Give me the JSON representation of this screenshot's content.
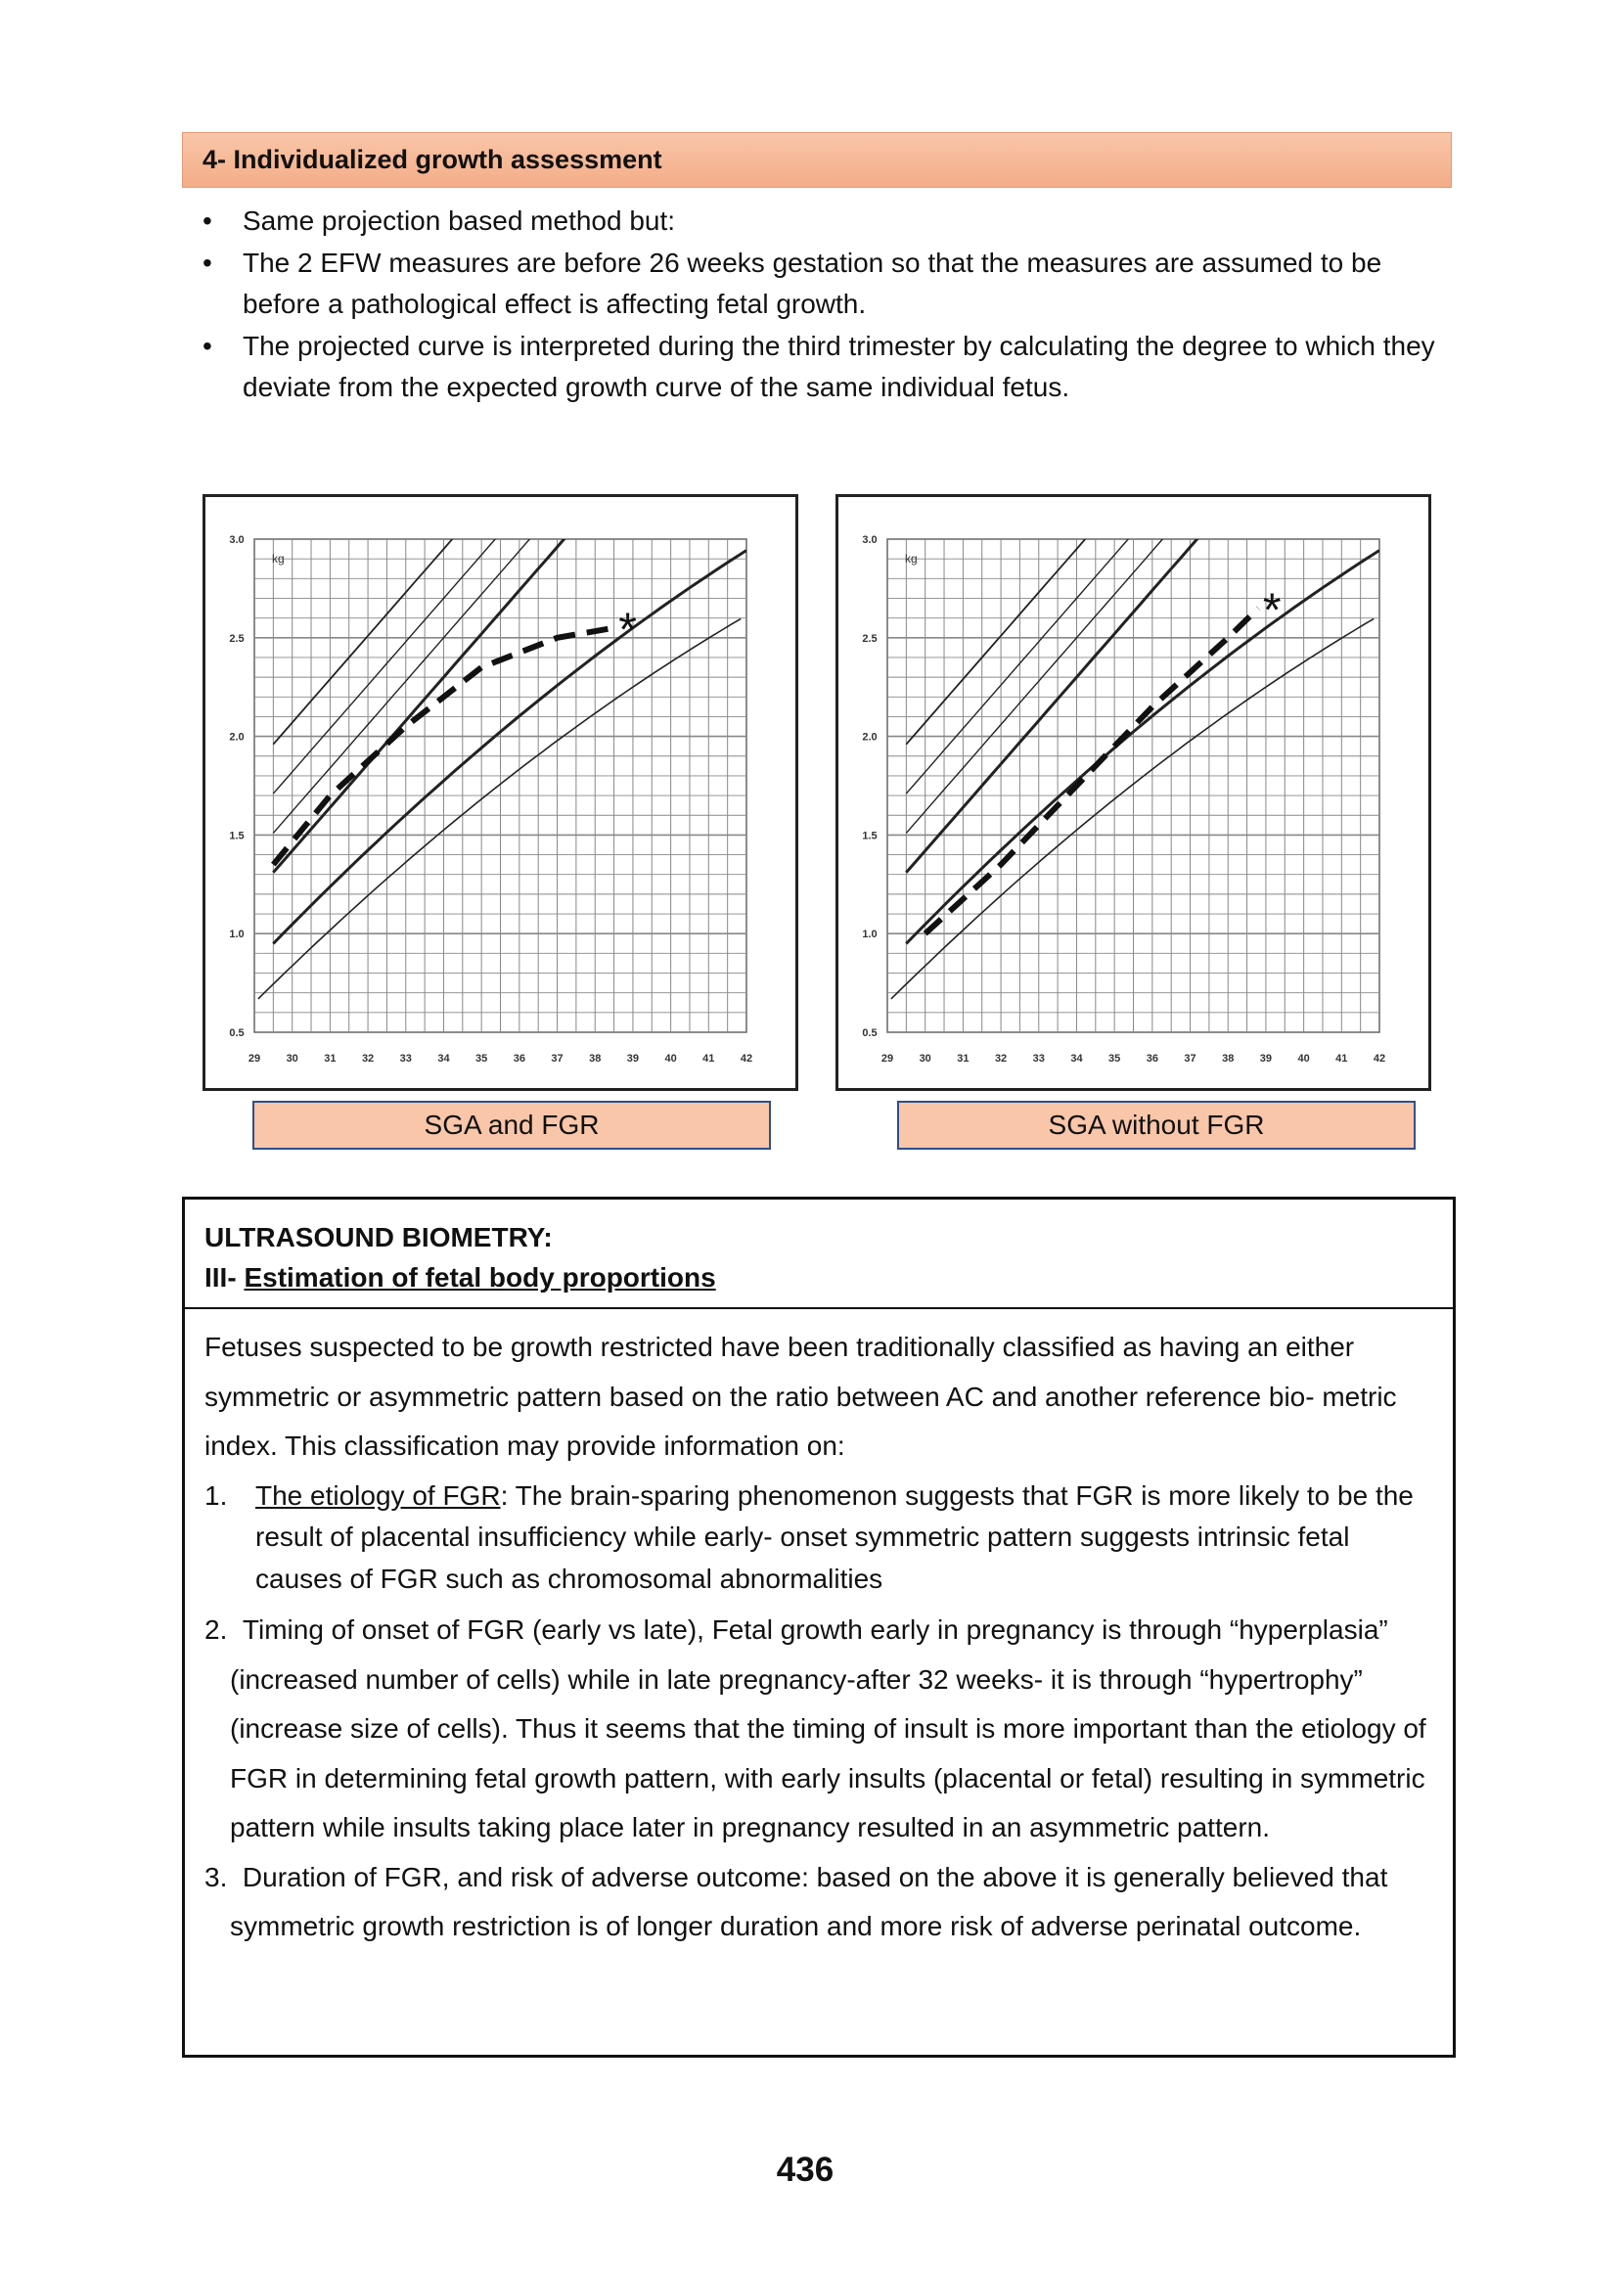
{
  "header": {
    "title": "4- Individualized growth assessment"
  },
  "bullets": [
    "Same projection based method but:",
    "The 2 EFW measures are before 26 weeks gestation so that the measures are assumed to be before a pathological effect is affecting fetal growth.",
    "The projected curve is interpreted during the third trimester by calculating the degree to which they deviate from the expected growth curve of the same individual fetus."
  ],
  "figures": [
    {
      "caption": "SGA and FGR",
      "y_axis_unit": "kg",
      "y_tick_labels": [
        "3.0",
        "2.5",
        "2.0",
        "1.5",
        "1.0",
        "0.5"
      ],
      "x_tick_labels": [
        "29",
        "30",
        "31",
        "32",
        "33",
        "34",
        "35",
        "36",
        "37",
        "38",
        "39",
        "40",
        "41",
        "42"
      ]
    },
    {
      "caption": "SGA without FGR",
      "y_axis_unit": "kg",
      "y_tick_labels": [
        "3.0",
        "2.5",
        "2.0",
        "1.5",
        "1.0",
        "0.5"
      ],
      "x_tick_labels": [
        "29",
        "30",
        "31",
        "32",
        "33",
        "34",
        "35",
        "36",
        "37",
        "38",
        "39",
        "40",
        "41",
        "42"
      ]
    }
  ],
  "box": {
    "heading": "ULTRASOUND BIOMETRY:",
    "subheading_prefix": "III-",
    "subheading": "Estimation of fetal body proportions",
    "intro": "Fetuses suspected to be growth restricted have been traditionally classified as having an either symmetric or asymmetric pattern based on the ratio between AC and another reference bio- metric index. This classification may provide information on:",
    "items": [
      {
        "number": "1.",
        "term": "The etiology of FGR",
        "text": ": The brain-sparing phenomenon suggests that FGR is more likely to be the result of placental insufficiency while early- onset symmetric pattern suggests intrinsic fetal causes of FGR such as chromosomal abnormalities"
      },
      {
        "number": "2.",
        "text": "Timing of onset of FGR (early vs late), Fetal growth early in pregnancy is through “hyperplasia” (increased number of cells) while in late pregnancy-after 32 weeks- it is through “hypertrophy” (increase size of cells). Thus it seems that the timing of insult is more important than the etiology of FGR in determining fetal growth pattern, with early insults (placental or fetal) resulting in symmetric pattern while insults taking place later in pregnancy resulted in an asymmetric pattern."
      },
      {
        "number": "3.",
        "text": "Duration  of  FGR, and  risk  of adverse outcome: based on the above it is generally believed that symmetric growth restriction is of longer duration and more risk of adverse perinatal outcome."
      }
    ]
  },
  "page_number": "436"
}
